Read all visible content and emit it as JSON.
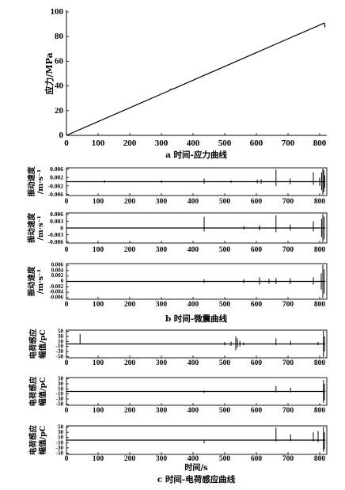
{
  "captions": {
    "a": "a 时间-应力曲线",
    "b": "b 时间-微震曲线",
    "c": "c 时间-电荷感应曲线"
  },
  "chart_data": [
    {
      "panel": "a",
      "type": "line",
      "xlabel": "",
      "ylabel": [
        "应力/MPa"
      ],
      "xlim": [
        0,
        820
      ],
      "ylim": [
        0,
        100
      ],
      "grid": false,
      "xticks": [
        "0",
        "100",
        "200",
        "300",
        "400",
        "500",
        "600",
        "700",
        "800"
      ],
      "yticks": [
        "0",
        "20",
        "40",
        "60",
        "80",
        "100"
      ],
      "series": [
        {
          "x": [
            0,
            100,
            200,
            300,
            326,
            330,
            334,
            400,
            500,
            600,
            700,
            800,
            812,
            815,
            817
          ],
          "y": [
            0,
            11.2,
            22.3,
            33.5,
            36.3,
            37.6,
            37.2,
            44.7,
            55.8,
            67.0,
            78.2,
            89.3,
            90.7,
            91.0,
            87.5
          ]
        }
      ]
    },
    {
      "panel": "b1",
      "type": "line",
      "xlabel": "",
      "ylabel": [
        "振动速度",
        "/m·s⁻¹"
      ],
      "xlim": [
        0,
        820
      ],
      "ylim": [
        -0.0066,
        0.0066
      ],
      "grid": false,
      "xticks": [
        "0",
        "100",
        "200",
        "300",
        "400",
        "500",
        "600",
        "700",
        "800"
      ],
      "yticks": [
        "0.006",
        "0.002",
        "-0.002",
        "-0.006"
      ],
      "series": [
        {
          "x": [
            0,
            818
          ],
          "y": [
            0,
            0
          ]
        }
      ],
      "spikes": [
        [
          120,
          0.0006,
          -0.0005
        ],
        [
          300,
          0.0006,
          -0.0005
        ],
        [
          435,
          0.0015,
          -0.001
        ],
        [
          520,
          0.0006,
          -0.0005
        ],
        [
          603,
          0.001,
          -0.0008
        ],
        [
          615,
          0.0012,
          -0.001
        ],
        [
          662,
          0.0058,
          -0.002
        ],
        [
          707,
          0.0015,
          -0.0012
        ],
        [
          780,
          0.0045,
          -0.0015
        ],
        [
          800,
          0.002,
          -0.002
        ],
        [
          806,
          0.0045,
          -0.004
        ],
        [
          810,
          0.0062,
          -0.0062
        ],
        [
          813,
          0.0055,
          -0.005
        ],
        [
          816,
          0.003,
          -0.003
        ]
      ]
    },
    {
      "panel": "b2",
      "type": "line",
      "xlabel": "",
      "ylabel": [
        "振动速度",
        "/m·s⁻¹"
      ],
      "xlim": [
        0,
        820
      ],
      "ylim": [
        -0.0066,
        0.0066
      ],
      "grid": false,
      "xticks": [
        "0",
        "100",
        "200",
        "300",
        "400",
        "500",
        "600",
        "700",
        "800"
      ],
      "yticks": [
        "0.006",
        "0.003",
        "0",
        "-0.003",
        "-0.006"
      ],
      "series": [
        {
          "x": [
            0,
            818
          ],
          "y": [
            0,
            0
          ]
        }
      ],
      "spikes": [
        [
          435,
          0.005,
          -0.0015
        ],
        [
          560,
          0.0008,
          -0.0006
        ],
        [
          610,
          0.0012,
          -0.001
        ],
        [
          662,
          0.0055,
          -0.0018
        ],
        [
          707,
          0.0015,
          -0.001
        ],
        [
          780,
          0.003,
          -0.0015
        ],
        [
          806,
          0.004,
          -0.004
        ],
        [
          810,
          0.0062,
          -0.0062
        ],
        [
          814,
          0.005,
          -0.005
        ]
      ]
    },
    {
      "panel": "b3",
      "type": "line",
      "xlabel": "",
      "ylabel": [
        "振动速度",
        "/m·s⁻¹"
      ],
      "xlim": [
        0,
        820
      ],
      "ylim": [
        -0.0066,
        0.0066
      ],
      "grid": false,
      "xticks": [
        "0",
        "100",
        "200",
        "300",
        "400",
        "500",
        "600",
        "700",
        "800"
      ],
      "yticks": [
        "0.006",
        "0.004",
        "0.002",
        "0",
        "-0.002",
        "-0.004",
        "-0.006"
      ],
      "series": [
        {
          "x": [
            0,
            818
          ],
          "y": [
            0,
            0
          ]
        }
      ],
      "spikes": [
        [
          435,
          0.0008,
          -0.0006
        ],
        [
          560,
          0.0008,
          -0.0006
        ],
        [
          610,
          0.0015,
          -0.0012
        ],
        [
          640,
          0.001,
          -0.0008
        ],
        [
          662,
          0.0012,
          -0.001
        ],
        [
          707,
          0.0012,
          -0.001
        ],
        [
          780,
          0.0015,
          -0.0012
        ],
        [
          805,
          0.003,
          -0.003
        ],
        [
          810,
          0.0062,
          -0.0062
        ],
        [
          814,
          0.0045,
          -0.0045
        ]
      ]
    },
    {
      "panel": "c1",
      "type": "line",
      "xlabel": "",
      "ylabel": [
        "电荷感应",
        "幅值/pC"
      ],
      "xlim": [
        0,
        820
      ],
      "ylim": [
        -55,
        55
      ],
      "grid": false,
      "xticks": [
        "0",
        "100",
        "200",
        "300",
        "400",
        "500",
        "600",
        "700",
        "800"
      ],
      "yticks": [
        "50",
        "30",
        "10",
        "-10",
        "-30",
        "-50"
      ],
      "series": [
        {
          "x": [
            0,
            818
          ],
          "y": [
            0,
            0
          ]
        }
      ],
      "spikes": [
        [
          43,
          40,
          0
        ],
        [
          500,
          8,
          -6
        ],
        [
          520,
          10,
          -8
        ],
        [
          535,
          30,
          -25
        ],
        [
          540,
          22,
          -15
        ],
        [
          548,
          12,
          -10
        ],
        [
          560,
          6,
          -5
        ],
        [
          662,
          22,
          -5
        ],
        [
          708,
          12,
          -4
        ],
        [
          795,
          8,
          -5
        ],
        [
          812,
          52,
          -52
        ],
        [
          815,
          30,
          -30
        ]
      ]
    },
    {
      "panel": "c2",
      "type": "line",
      "xlabel": "",
      "ylabel": [
        "电荷感应",
        "幅值/pC"
      ],
      "xlim": [
        0,
        820
      ],
      "ylim": [
        -55,
        55
      ],
      "grid": false,
      "xticks": [
        "0",
        "100",
        "200",
        "300",
        "400",
        "500",
        "600",
        "700",
        "800"
      ],
      "yticks": [
        "50",
        "30",
        "10",
        "-10",
        "-30",
        "-50"
      ],
      "series": [
        {
          "x": [
            0,
            818
          ],
          "y": [
            0,
            0
          ]
        }
      ],
      "spikes": [
        [
          435,
          4,
          -6
        ],
        [
          662,
          22,
          -4
        ],
        [
          708,
          15,
          -4
        ],
        [
          812,
          45,
          -45
        ],
        [
          815,
          30,
          -35
        ]
      ]
    },
    {
      "panel": "c3",
      "type": "line",
      "xlabel": "时间/s",
      "ylabel": [
        "电荷感应",
        "幅值/pC"
      ],
      "xlim": [
        0,
        820
      ],
      "ylim": [
        -55,
        55
      ],
      "grid": false,
      "xticks": [
        "0",
        "100",
        "200",
        "300",
        "400",
        "500",
        "600",
        "700",
        "800"
      ],
      "yticks": [
        "50",
        "30",
        "10",
        "-10",
        "-30",
        "-50"
      ],
      "series": [
        {
          "x": [
            0,
            818
          ],
          "y": [
            0,
            0
          ]
        }
      ],
      "spikes": [
        [
          435,
          2,
          -12
        ],
        [
          662,
          48,
          -5
        ],
        [
          708,
          22,
          -4
        ],
        [
          780,
          30,
          -5
        ],
        [
          795,
          35,
          -8
        ],
        [
          812,
          50,
          -45
        ],
        [
          815,
          30,
          -35
        ]
      ]
    }
  ]
}
